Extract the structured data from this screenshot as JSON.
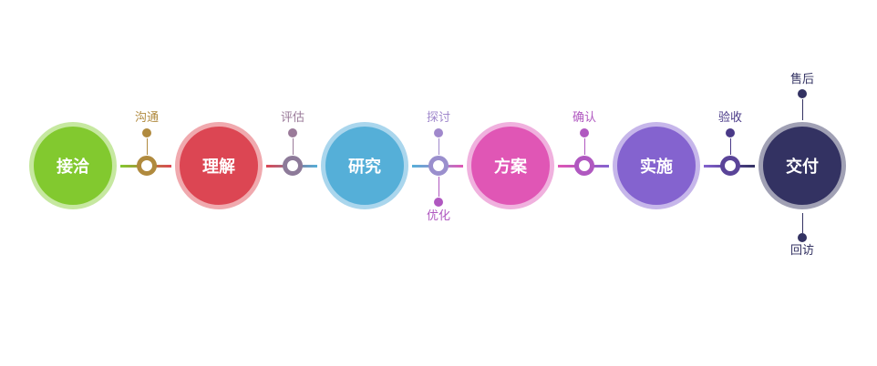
{
  "stages": [
    {
      "label": "接洽",
      "color": "#82c92f",
      "ring": "#c6e8a0"
    },
    {
      "label": "理解",
      "color": "#dc4653",
      "ring": "#f0a9ae"
    },
    {
      "label": "研究",
      "color": "#55afd8",
      "ring": "#aad6ed"
    },
    {
      "label": "方案",
      "color": "#e056b5",
      "ring": "#f0b1de"
    },
    {
      "label": "实施",
      "color": "#8463cf",
      "ring": "#c6b6ea"
    },
    {
      "label": "交付",
      "color": "#333262",
      "ring": "#a0a0b4"
    }
  ],
  "connectors": [
    {
      "color": "#b08a3e",
      "top": {
        "label": "沟通",
        "color": "#b08a3e"
      }
    },
    {
      "color": "#8d7a99",
      "top": {
        "label": "评估",
        "color": "#9a7a99"
      }
    },
    {
      "color": "#9a8fcd",
      "top": {
        "label": "探讨",
        "color": "#a088cc"
      },
      "bottom": {
        "label": "优化",
        "color": "#b058c0"
      }
    },
    {
      "color": "#b058c0",
      "top": {
        "label": "确认",
        "color": "#b058c0"
      }
    },
    {
      "color": "#5a4498",
      "top": {
        "label": "验收",
        "color": "#4a3a88"
      }
    }
  ],
  "final_branches": {
    "top": {
      "label": "售后",
      "color": "#333262"
    },
    "bottom": {
      "label": "回访",
      "color": "#333262"
    }
  }
}
